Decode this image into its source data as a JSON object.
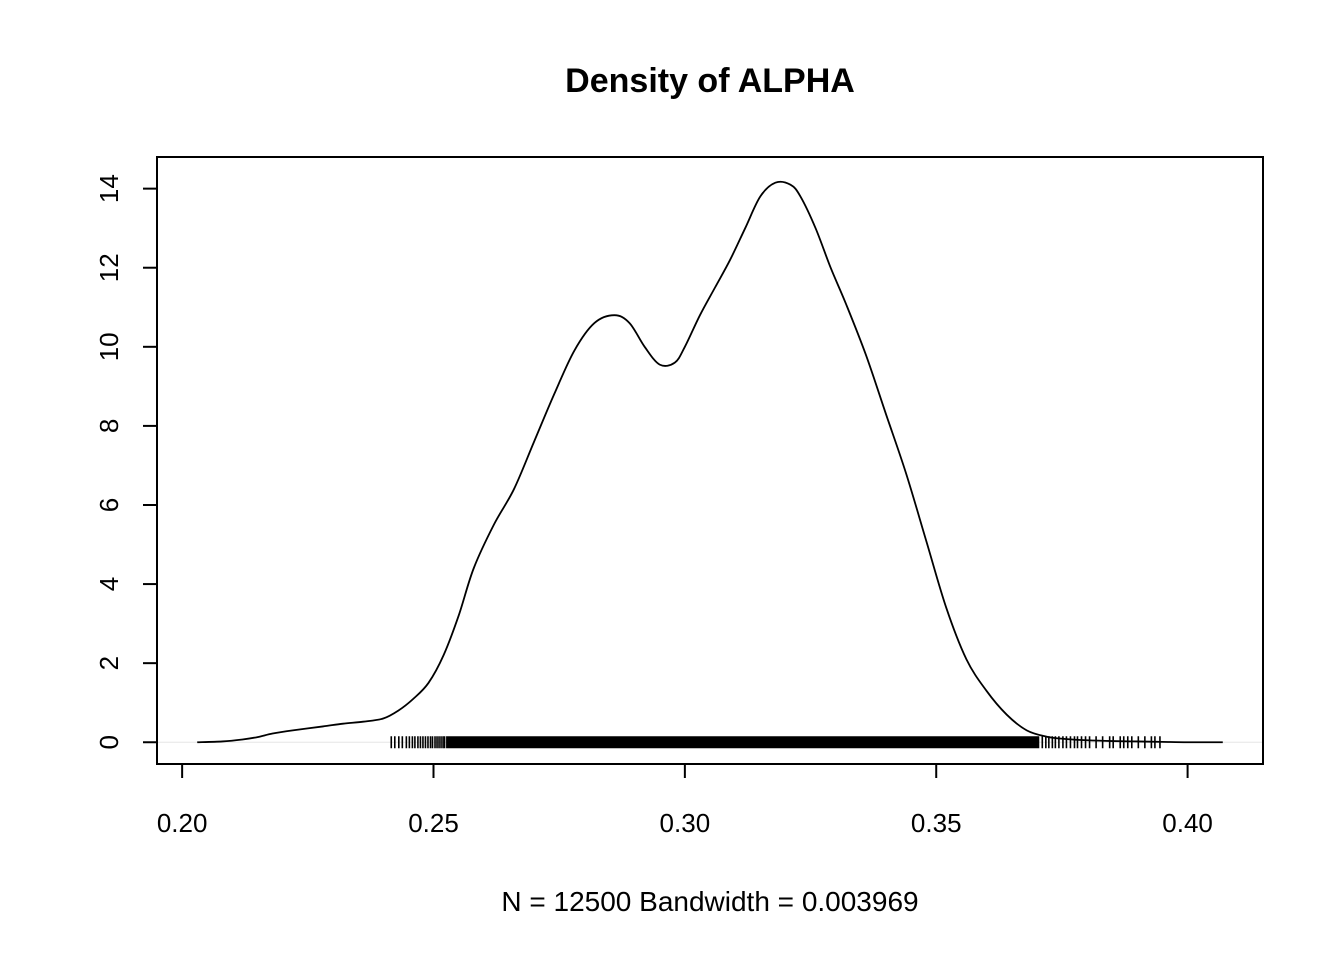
{
  "chart_data": {
    "type": "line",
    "title": "Density of ALPHA",
    "xlabel": "N = 12500   Bandwidth = 0.003969",
    "ylabel": "",
    "xlim": [
      0.195,
      0.415
    ],
    "ylim": [
      -0.55,
      14.8
    ],
    "x_ticks": [
      0.2,
      0.25,
      0.3,
      0.35,
      0.4
    ],
    "x_tick_labels": [
      "0.20",
      "0.25",
      "0.30",
      "0.35",
      "0.40"
    ],
    "y_ticks": [
      0,
      2,
      4,
      6,
      8,
      10,
      12,
      14
    ],
    "y_tick_labels": [
      "0",
      "2",
      "4",
      "6",
      "8",
      "10",
      "12",
      "14"
    ],
    "grid": false,
    "zero_line": true,
    "series": [
      {
        "x": [
          0.203,
          0.208,
          0.212,
          0.215,
          0.218,
          0.222,
          0.228,
          0.232,
          0.236,
          0.24,
          0.243,
          0.246,
          0.249,
          0.252,
          0.255,
          0.258,
          0.262,
          0.266,
          0.27,
          0.274,
          0.278,
          0.282,
          0.286,
          0.289,
          0.292,
          0.295,
          0.298,
          0.3,
          0.303,
          0.306,
          0.309,
          0.312,
          0.315,
          0.318,
          0.321,
          0.323,
          0.326,
          0.329,
          0.332,
          0.336,
          0.34,
          0.344,
          0.348,
          0.352,
          0.356,
          0.36,
          0.364,
          0.368,
          0.372,
          0.376,
          0.38,
          0.385,
          0.39,
          0.395,
          0.4,
          0.407
        ],
        "y": [
          0.0,
          0.02,
          0.07,
          0.13,
          0.22,
          0.3,
          0.4,
          0.47,
          0.52,
          0.6,
          0.8,
          1.1,
          1.5,
          2.2,
          3.2,
          4.4,
          5.5,
          6.4,
          7.6,
          8.8,
          9.9,
          10.6,
          10.8,
          10.6,
          10.0,
          9.55,
          9.6,
          10.0,
          10.8,
          11.5,
          12.2,
          13.0,
          13.8,
          14.15,
          14.1,
          13.8,
          13.0,
          12.0,
          11.1,
          9.8,
          8.3,
          6.8,
          5.1,
          3.4,
          2.1,
          1.3,
          0.7,
          0.3,
          0.14,
          0.08,
          0.05,
          0.03,
          0.02,
          0.01,
          0.0,
          0.0
        ]
      }
    ],
    "rug": {
      "dense_range": [
        0.2525,
        0.3705
      ],
      "sparse_points": [
        0.2416,
        0.2423,
        0.2431,
        0.2438,
        0.2446,
        0.2452,
        0.2458,
        0.2463,
        0.2469,
        0.2474,
        0.2479,
        0.2484,
        0.2489,
        0.2494,
        0.2498,
        0.2503,
        0.2507,
        0.2511,
        0.2515,
        0.2519,
        0.2522,
        0.3711,
        0.3718,
        0.3724,
        0.3731,
        0.3737,
        0.3744,
        0.3752,
        0.3759,
        0.3767,
        0.3775,
        0.3781,
        0.3789,
        0.3797,
        0.3805,
        0.3818,
        0.3831,
        0.3845,
        0.3852,
        0.3866,
        0.3873,
        0.3881,
        0.3889,
        0.3902,
        0.3915,
        0.3928,
        0.3935,
        0.3945
      ]
    }
  }
}
